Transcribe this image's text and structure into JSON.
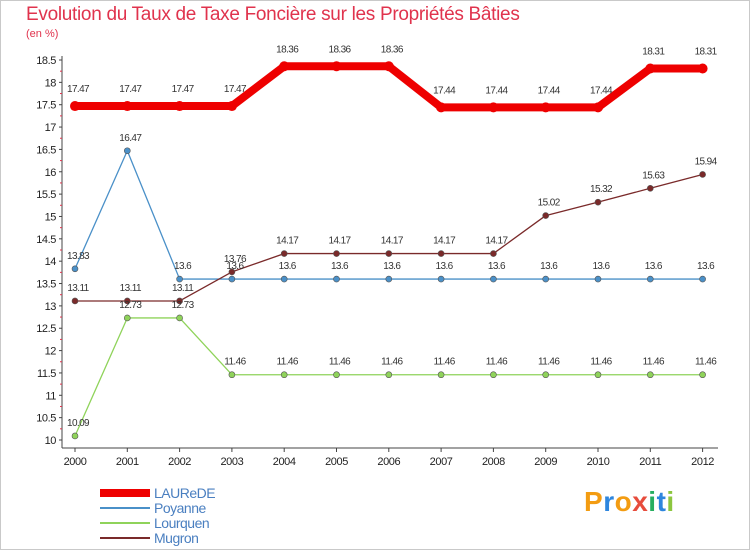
{
  "title": "Evolution du Taux de Taxe Foncière sur les Propriétés Bâties",
  "subtitle": "(en %)",
  "logo": {
    "text": "Proxiti",
    "letters": [
      "P",
      "r",
      "o",
      "x",
      "i",
      "t",
      "i"
    ],
    "colors": [
      "#f39c12",
      "#2e86de",
      "#f39c12",
      "#e74c3c",
      "#27ae60",
      "#2e86de",
      "#8cc63f"
    ]
  },
  "chart_data": {
    "type": "line",
    "title": "Evolution du Taux de Taxe Foncière sur les Propriétés Bâties",
    "ylabel": "(en %)",
    "xlabel": "",
    "categories": [
      "2000",
      "2001",
      "2002",
      "2003",
      "2004",
      "2005",
      "2006",
      "2007",
      "2008",
      "2009",
      "2010",
      "2011",
      "2012"
    ],
    "ylim": [
      10,
      18.5
    ],
    "yticks": [
      "10",
      "10.5",
      "11",
      "11.5",
      "12",
      "12.5",
      "13",
      "13.5",
      "14",
      "14.5",
      "15",
      "15.5",
      "16",
      "16.5",
      "17",
      "17.5",
      "18",
      "18.5"
    ],
    "series": [
      {
        "name": "LAUReDE",
        "color": "#ee0000",
        "values": [
          17.47,
          17.47,
          17.47,
          17.47,
          18.36,
          18.36,
          18.36,
          17.44,
          17.44,
          17.44,
          17.44,
          18.31,
          18.31
        ],
        "labels": [
          "17.47",
          "17.47",
          "17.47",
          "17.47",
          "18.36",
          "18.36",
          "18.36",
          "17.44",
          "17.44",
          "17.44",
          "17.44",
          "18.31",
          "18.31"
        ]
      },
      {
        "name": "Poyanne",
        "color": "#4a90c8",
        "values": [
          13.83,
          16.47,
          13.6,
          13.6,
          13.6,
          13.6,
          13.6,
          13.6,
          13.6,
          13.6,
          13.6,
          13.6,
          13.6
        ],
        "labels": [
          "13.83",
          "16.47",
          "13.6",
          "13.6",
          "13.6",
          "13.6",
          "13.6",
          "13.6",
          "13.6",
          "13.6",
          "13.6",
          "13.6",
          "13.6"
        ]
      },
      {
        "name": "Lourquen",
        "color": "#8fd35a",
        "values": [
          10.09,
          12.73,
          12.73,
          11.46,
          11.46,
          11.46,
          11.46,
          11.46,
          11.46,
          11.46,
          11.46,
          11.46,
          11.46
        ],
        "labels": [
          "10.09",
          "12.73",
          "12.73",
          "11.46",
          "11.46",
          "11.46",
          "11.46",
          "11.46",
          "11.46",
          "11.46",
          "11.46",
          "11.46",
          "11.46"
        ]
      },
      {
        "name": "Mugron",
        "color": "#7a2a2a",
        "values": [
          13.11,
          13.11,
          13.11,
          13.76,
          14.17,
          14.17,
          14.17,
          14.17,
          14.17,
          15.02,
          15.32,
          15.63,
          15.94
        ],
        "labels": [
          "13.11",
          "13.11",
          "13.11",
          "13.76",
          "14.17",
          "14.17",
          "14.17",
          "14.17",
          "14.17",
          "15.02",
          "15.32",
          "15.63",
          "15.94"
        ]
      }
    ],
    "legend_position": "bottom-left",
    "grid": false
  }
}
